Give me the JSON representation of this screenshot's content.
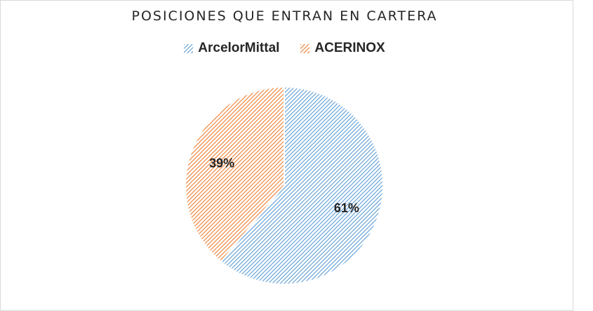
{
  "chart_data": {
    "type": "pie",
    "title": "POSICIONES QUE ENTRAN EN CARTERA",
    "categories": [
      "ArcelorMittal",
      "ACERINOX"
    ],
    "values": [
      61,
      39
    ],
    "data_labels": [
      "61%",
      "39%"
    ],
    "colors": [
      "#5b9bd5",
      "#ed7d31"
    ],
    "fill_pattern": "diagonal-hatch",
    "legend_position": "top"
  }
}
